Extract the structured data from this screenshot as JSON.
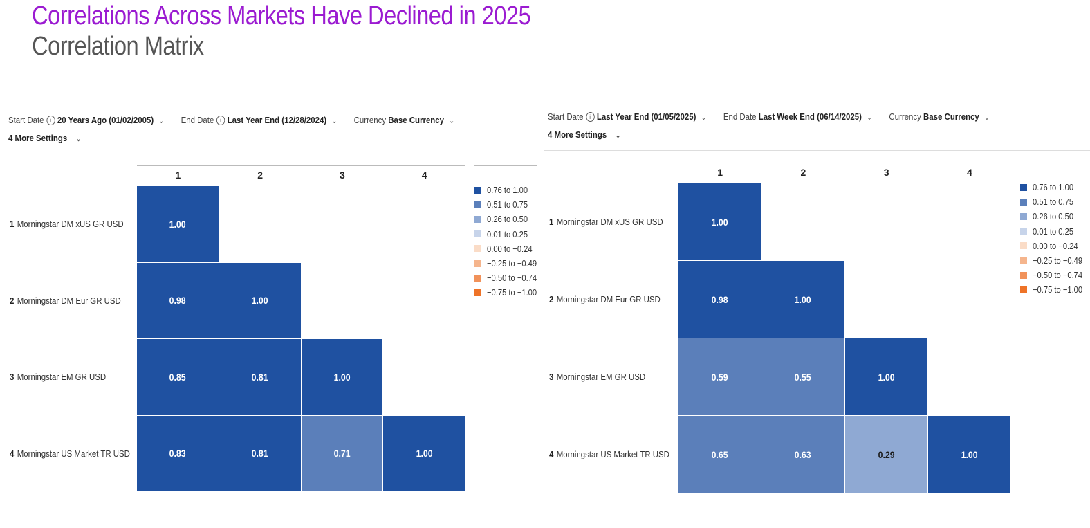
{
  "header": {
    "title": "Correlations Across Markets Have Declined in 2025",
    "subtitle": "Correlation Matrix"
  },
  "legend_bins": [
    {
      "label": "0.76 to 1.00",
      "color": "#1f51a1"
    },
    {
      "label": "0.51 to 0.75",
      "color": "#5b7fba"
    },
    {
      "label": "0.26 to 0.50",
      "color": "#8fa9d3"
    },
    {
      "label": "0.01 to 0.25",
      "color": "#c7d4ea"
    },
    {
      "label": "0.00 to −0.24",
      "color": "#fadcc7"
    },
    {
      "label": "−0.25 to −0.49",
      "color": "#f5b58d"
    },
    {
      "label": "−0.50 to −0.74",
      "color": "#f1925a"
    },
    {
      "label": "−0.75 to −1.00",
      "color": "#ee7328"
    }
  ],
  "panels": [
    {
      "controls": {
        "start_label": "Start Date",
        "start_value": "20 Years Ago (01/02/2005)",
        "end_label": "End Date",
        "end_value": "Last Year End (12/28/2024)",
        "currency_label": "Currency",
        "currency_value": "Base Currency",
        "more_settings": "4 More Settings"
      },
      "chart_data": {
        "type": "heatmap",
        "columns": [
          "1",
          "2",
          "3",
          "4"
        ],
        "rows": [
          {
            "num": "1",
            "name": "Morningstar DM xUS GR USD"
          },
          {
            "num": "2",
            "name": "Morningstar DM Eur GR USD"
          },
          {
            "num": "3",
            "name": "Morningstar EM GR USD"
          },
          {
            "num": "4",
            "name": "Morningstar US Market TR USD"
          }
        ],
        "values": [
          [
            1.0
          ],
          [
            0.98,
            1.0
          ],
          [
            0.85,
            0.81,
            1.0
          ],
          [
            0.83,
            0.81,
            0.71,
            1.0
          ]
        ]
      }
    },
    {
      "controls": {
        "start_label": "Start Date",
        "start_value": "Last Year End (01/05/2025)",
        "end_label": "End Date",
        "end_value": "Last Week End (06/14/2025)",
        "currency_label": "Currency",
        "currency_value": "Base Currency",
        "more_settings": "4 More Settings"
      },
      "chart_data": {
        "type": "heatmap",
        "columns": [
          "1",
          "2",
          "3",
          "4"
        ],
        "rows": [
          {
            "num": "1",
            "name": "Morningstar DM xUS GR USD"
          },
          {
            "num": "2",
            "name": "Morningstar DM Eur GR USD"
          },
          {
            "num": "3",
            "name": "Morningstar EM GR USD"
          },
          {
            "num": "4",
            "name": "Morningstar US Market TR USD"
          }
        ],
        "values": [
          [
            1.0
          ],
          [
            0.98,
            1.0
          ],
          [
            0.59,
            0.55,
            1.0
          ],
          [
            0.65,
            0.63,
            0.29,
            1.0
          ]
        ]
      }
    }
  ]
}
